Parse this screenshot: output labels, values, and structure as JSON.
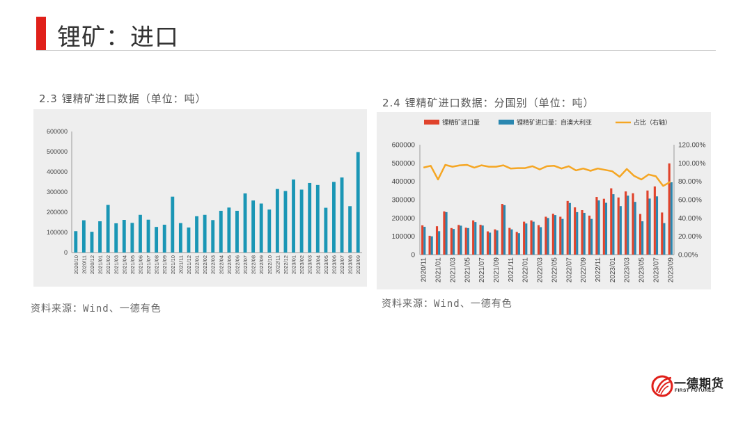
{
  "page": {
    "title": "锂矿：进口",
    "left_chart_title": "2.3 锂精矿进口数据（单位：吨）",
    "right_chart_title": "2.4 锂精矿进口数据：分国别（单位：吨）",
    "left_source": "资料来源：Wind、一德有色",
    "right_source": "资料来源：Wind、一德有色",
    "accent_color": "#e0201a",
    "logo": {
      "name": "一德期货",
      "english": "FIRST FUTURES"
    }
  },
  "chart_data": [
    {
      "type": "bar",
      "title": "",
      "categories": [
        "2020/10",
        "2020/11",
        "2020/12",
        "2021/01",
        "2021/02",
        "2021/03",
        "2021/04",
        "2021/05",
        "2021/06",
        "2021/07",
        "2021/08",
        "2021/09",
        "2021/10",
        "2021/11",
        "2021/12",
        "2022/01",
        "2022/02",
        "2022/03",
        "2022/04",
        "2022/05",
        "2022/06",
        "2022/07",
        "2022/08",
        "2022/09",
        "2022/10",
        "2022/11",
        "2022/12",
        "2023/01",
        "2023/02",
        "2023/03",
        "2023/04",
        "2023/05",
        "2023/06",
        "2023/07",
        "2023/08",
        "2023/09"
      ],
      "values": [
        106000,
        160000,
        103000,
        155000,
        236000,
        145000,
        162000,
        147000,
        187000,
        163000,
        127000,
        138000,
        277000,
        146000,
        124000,
        180000,
        187000,
        161000,
        207000,
        223000,
        207000,
        293000,
        258000,
        243000,
        213000,
        315000,
        305000,
        362000,
        312000,
        345000,
        335000,
        222000,
        350000,
        372000,
        230000,
        498000
      ],
      "ylim": [
        0,
        600000
      ],
      "yticks": [
        "0",
        "100000",
        "200000",
        "300000",
        "400000",
        "500000",
        "600000"
      ],
      "color": "#1a96b5",
      "grid": false
    },
    {
      "type": "bar+line",
      "title": "",
      "categories": [
        "2020/11",
        "2020/12",
        "2021/01",
        "2021/02",
        "2021/03",
        "2021/04",
        "2021/05",
        "2021/06",
        "2021/07",
        "2021/08",
        "2021/09",
        "2021/10",
        "2021/11",
        "2021/12",
        "2022/01",
        "2022/02",
        "2022/03",
        "2022/04",
        "2022/05",
        "2022/06",
        "2022/07",
        "2022/08",
        "2022/09",
        "2022/10",
        "2022/11",
        "2022/12",
        "2023/01",
        "2023/02",
        "2023/03",
        "2023/04",
        "2023/05",
        "2023/06",
        "2023/07",
        "2023/08",
        "2023/09"
      ],
      "xtick_labels": [
        "2020/11",
        "2021/01",
        "2021/03",
        "2021/05",
        "2021/07",
        "2021/09",
        "2021/11",
        "2022/01",
        "2022/03",
        "2022/05",
        "2022/07",
        "2022/09",
        "2022/11",
        "2023/01",
        "2023/03",
        "2023/05",
        "2023/07",
        "2023/09"
      ],
      "legend": [
        "锂精矿进口量",
        "锂精矿进口量：自澳大利亚",
        "占比（右轴）"
      ],
      "legend_position": "top",
      "series": [
        {
          "name": "锂精矿进口量",
          "kind": "bar",
          "color": "#e0432c",
          "values": [
            160000,
            103000,
            155000,
            236000,
            145000,
            162000,
            147000,
            187000,
            163000,
            127000,
            138000,
            277000,
            146000,
            124000,
            180000,
            187000,
            161000,
            207000,
            223000,
            207000,
            293000,
            258000,
            243000,
            213000,
            315000,
            305000,
            362000,
            312000,
            345000,
            335000,
            222000,
            350000,
            372000,
            230000,
            498000
          ]
        },
        {
          "name": "锂精矿进口量：自澳大利亚",
          "kind": "bar",
          "color": "#2a87b0",
          "values": [
            152000,
            100000,
            128000,
            232000,
            140000,
            158000,
            145000,
            178000,
            159000,
            120000,
            132000,
            270000,
            138000,
            117000,
            170000,
            180000,
            150000,
            200000,
            216000,
            195000,
            282000,
            232000,
            228000,
            195000,
            296000,
            283000,
            330000,
            265000,
            322000,
            288000,
            182000,
            306000,
            318000,
            172000,
            395000
          ]
        },
        {
          "name": "占比（右轴）",
          "kind": "line",
          "axis": "right",
          "color": "#f5a623",
          "values": [
            0.95,
            0.97,
            0.82,
            0.98,
            0.96,
            0.975,
            0.98,
            0.95,
            0.975,
            0.96,
            0.96,
            0.975,
            0.94,
            0.945,
            0.945,
            0.965,
            0.93,
            0.965,
            0.97,
            0.94,
            0.965,
            0.92,
            0.94,
            0.915,
            0.94,
            0.925,
            0.91,
            0.85,
            0.935,
            0.86,
            0.82,
            0.875,
            0.855,
            0.75,
            0.795
          ]
        }
      ],
      "ylim": [
        0,
        600000
      ],
      "yticks": [
        "0",
        "100000",
        "200000",
        "300000",
        "400000",
        "500000",
        "600000"
      ],
      "y2lim": [
        0,
        1.2
      ],
      "y2ticks": [
        "0.00%",
        "20.00%",
        "40.00%",
        "60.00%",
        "80.00%",
        "100.00%",
        "120.00%"
      ],
      "grid": false
    }
  ]
}
